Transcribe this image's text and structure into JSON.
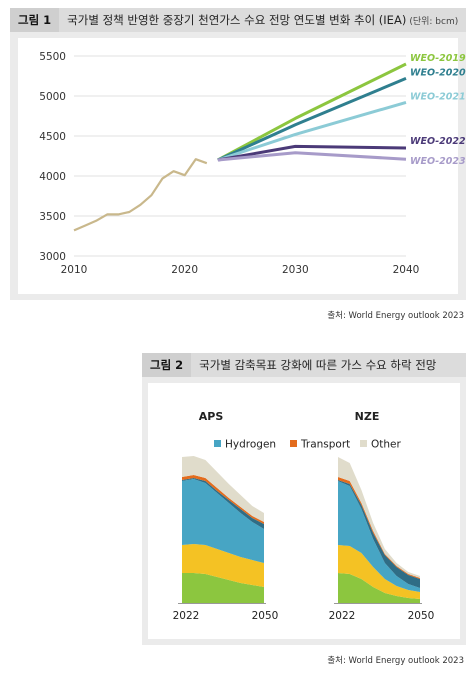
{
  "figure1": {
    "tag": "그림 1",
    "title": "국가별 정책 반영한 중장기 천연가스 수요 전망 연도별 변화 추이 (IEA)",
    "unit": "(단위: bcm)",
    "source": "출처: World Energy outlook 2023"
  },
  "figure2": {
    "tag": "그림 2",
    "title": "국가별 감축목표 강화에 따른 가스 수요 하락 전망",
    "source": "출처: World Energy outlook 2023"
  },
  "chart_data": [
    {
      "type": "line",
      "title": "국가별 정책 반영한 중장기 천연가스 수요 전망 연도별 변화 추이 (IEA)",
      "ylabel": "(단위: bcm)",
      "xlim": [
        2010,
        2040
      ],
      "ylim": [
        3000,
        5500
      ],
      "xticks": [
        2010,
        2020,
        2030,
        2040
      ],
      "yticks": [
        3000,
        3500,
        4000,
        4500,
        5000,
        5500
      ],
      "grid": "horizontal",
      "historical": {
        "color": "#c9b88c",
        "x": [
          2010,
          2011,
          2012,
          2013,
          2014,
          2015,
          2016,
          2017,
          2018,
          2019,
          2020,
          2021,
          2022
        ],
        "y": [
          3320,
          3380,
          3440,
          3520,
          3520,
          3550,
          3640,
          3760,
          3970,
          4060,
          4010,
          4210,
          4160
        ]
      },
      "series": [
        {
          "name": "WEO-2019",
          "color": "#8cc63f",
          "x": [
            2023,
            2030,
            2040
          ],
          "y": [
            4200,
            4720,
            5400
          ]
        },
        {
          "name": "WEO-2020",
          "color": "#2f7f8f",
          "x": [
            2023,
            2030,
            2040
          ],
          "y": [
            4200,
            4640,
            5220
          ]
        },
        {
          "name": "WEO-2021",
          "color": "#8ccbd6",
          "x": [
            2023,
            2030,
            2040
          ],
          "y": [
            4200,
            4520,
            4920
          ]
        },
        {
          "name": "WEO-2022",
          "color": "#4b3a78",
          "x": [
            2023,
            2030,
            2040
          ],
          "y": [
            4200,
            4370,
            4350
          ]
        },
        {
          "name": "WEO-2023",
          "color": "#a79bc9",
          "x": [
            2023,
            2030,
            2040
          ],
          "y": [
            4200,
            4290,
            4210
          ]
        }
      ]
    },
    {
      "type": "area",
      "subcharts": [
        {
          "title": "APS",
          "x": [
            2022,
            2026,
            2030,
            2034,
            2038,
            2042,
            2046,
            2050
          ],
          "xticks": [
            2022,
            2050
          ],
          "series": [
            {
              "name": "green",
              "color": "#8cc63f",
              "values": [
                30,
                30,
                29,
                26,
                23,
                20,
                18,
                16
              ]
            },
            {
              "name": "yellow",
              "color": "#f4c224",
              "values": [
                28,
                29,
                29,
                28,
                27,
                26,
                25,
                24
              ]
            },
            {
              "name": "Hydrogen",
              "color": "#47a5c4",
              "values": [
                64,
                65,
                62,
                56,
                50,
                44,
                38,
                34
              ]
            },
            {
              "name": "dark",
              "color": "#2f6d86",
              "values": [
                1,
                1,
                2,
                2,
                3,
                4,
                4,
                5
              ]
            },
            {
              "name": "Transport",
              "color": "#e36c1d",
              "values": [
                3,
                3,
                3,
                3,
                2,
                2,
                2,
                2
              ]
            },
            {
              "name": "Other",
              "color": "#e0dccb",
              "values": [
                20,
                19,
                18,
                16,
                14,
                12,
                10,
                9
              ]
            }
          ]
        },
        {
          "title": "NZE",
          "x": [
            2022,
            2026,
            2030,
            2034,
            2038,
            2042,
            2046,
            2050
          ],
          "xticks": [
            2022,
            2050
          ],
          "series": [
            {
              "name": "green",
              "color": "#8cc63f",
              "values": [
                30,
                29,
                24,
                16,
                10,
                7,
                5,
                4
              ]
            },
            {
              "name": "yellow",
              "color": "#f4c224",
              "values": [
                28,
                28,
                26,
                20,
                14,
                10,
                8,
                7
              ]
            },
            {
              "name": "Hydrogen",
              "color": "#47a5c4",
              "values": [
                64,
                60,
                44,
                28,
                16,
                10,
                6,
                4
              ]
            },
            {
              "name": "dark",
              "color": "#2f6d86",
              "values": [
                1,
                2,
                4,
                6,
                8,
                9,
                9,
                9
              ]
            },
            {
              "name": "Transport",
              "color": "#e36c1d",
              "values": [
                3,
                3,
                2,
                2,
                1,
                1,
                1,
                1
              ]
            },
            {
              "name": "Other",
              "color": "#e0dccb",
              "values": [
                20,
                18,
                13,
                8,
                5,
                3,
                2,
                2
              ]
            }
          ]
        }
      ],
      "legend": [
        "Hydrogen",
        "Transport",
        "Other"
      ],
      "legend_colors": [
        "#47a5c4",
        "#e36c1d",
        "#e0dccb"
      ],
      "legend_position": "top"
    }
  ]
}
